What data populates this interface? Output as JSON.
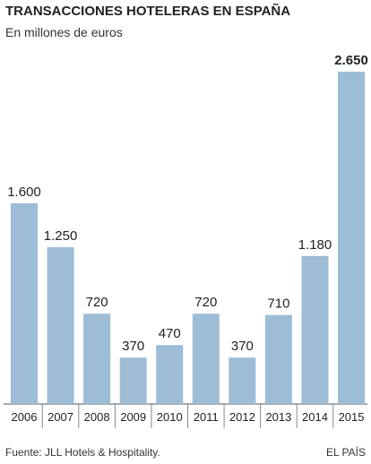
{
  "chart_data": {
    "type": "bar",
    "title": "TRANSACCIONES HOTELERAS EN ESPAÑA",
    "subtitle": "En millones de euros",
    "categories": [
      "2006",
      "2007",
      "2008",
      "2009",
      "2010",
      "2011",
      "2012",
      "2013",
      "2014",
      "2015"
    ],
    "values": [
      1600,
      1250,
      720,
      370,
      470,
      720,
      370,
      710,
      1180,
      2650
    ],
    "value_labels": [
      "1.600",
      "1.250",
      "720",
      "370",
      "470",
      "720",
      "370",
      "710",
      "1.180",
      "2.650"
    ],
    "color": "#9dbcd6",
    "source": "Fuente: JLL Hotels & Hospitality.",
    "publisher": "EL PAÍS"
  }
}
